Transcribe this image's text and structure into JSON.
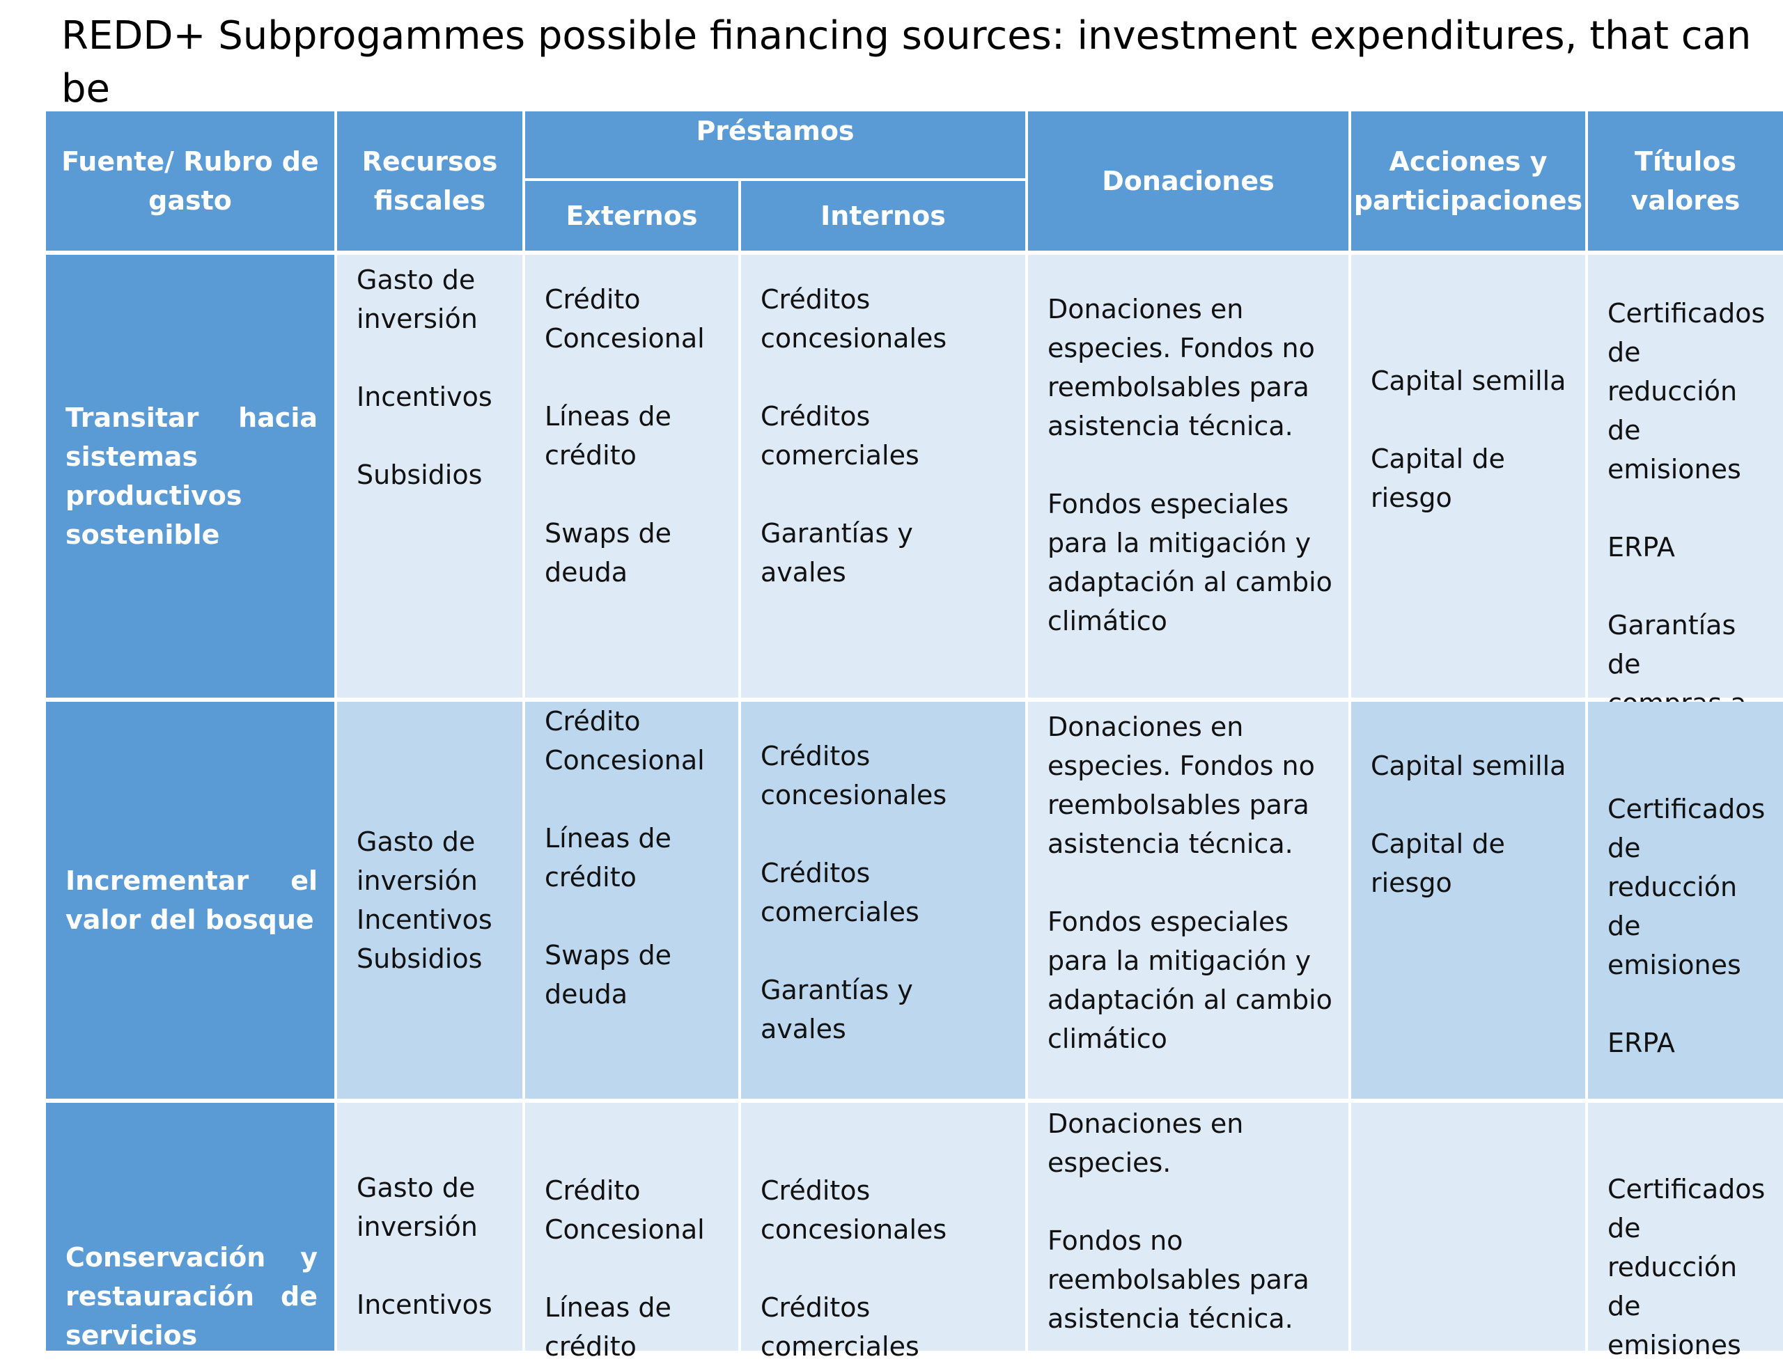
{
  "title": "REDD+ Subprogammes possible financing sources: investment expenditures, that can be\nfinanced by almost all the financial instruments identified as follows:",
  "headers": {
    "fuente": "Fuente/ Rubro de\ngasto",
    "recursos": "Recursos\nfiscales",
    "prestamos": "Préstamos",
    "externos": "Externos",
    "internos": "Internos",
    "donaciones": "Donaciones",
    "acciones": "Acciones y\nparticipaciones",
    "titulos": "Títulos valores"
  },
  "rows": [
    {
      "label": "Transitar hacia sistemas productivos sostenible",
      "recursos": "Gasto de\ninversión\n\nIncentivos\n\nSubsidios",
      "externos": "Crédito\nConcesional\n\nLíneas de\ncrédito\n\nSwaps de\ndeuda",
      "internos": "Créditos\nconcesionales\n\nCréditos\ncomerciales\n\nGarantías y\navales",
      "donaciones": "Donaciones en\nespecies.   Fondos no\nreembolsables para\nasistencia técnica.\n\nFondos especiales\npara la mitigación y\nadaptación al cambio\nclimático",
      "acciones": "Capital semilla\n\nCapital de\nriesgo",
      "titulos": "Certificados de\nreducción de\nemisiones\n\nERPA\n\nGarantías de\ncompras a largo\nplazo."
    },
    {
      "label": "Incrementar el valor del bosque",
      "recursos": "Gasto de\ninversión\nIncentivos\nSubsidios",
      "externos": "Crédito\nConcesional\n\nLíneas de\ncrédito\n\nSwaps de\ndeuda",
      "internos": "Créditos\nconcesionales\n\nCréditos\ncomerciales\n\nGarantías y\navales",
      "donaciones": "Donaciones en\nespecies.   Fondos no\nreembolsables para\nasistencia técnica.\n\nFondos especiales\npara la mitigación y\nadaptación al cambio\nclimático",
      "acciones": "Capital semilla\n\nCapital de\nriesgo",
      "titulos": "Certificados de\nreducción de\nemisiones\n\nERPA"
    },
    {
      "label": "Conservación y restauración de servicios",
      "recursos": "Gasto de\ninversión\n\nIncentivos",
      "externos": "Crédito\nConcesional\n\nLíneas de\ncrédito",
      "internos": "Créditos\nconcesionales\n\nCréditos\ncomerciales",
      "donaciones": "Donaciones en\nespecies.\n\nFondos no\nreembolsables para\nasistencia técnica.",
      "acciones": "",
      "titulos": "Certificados de\nreducción de\nemisiones"
    }
  ]
}
